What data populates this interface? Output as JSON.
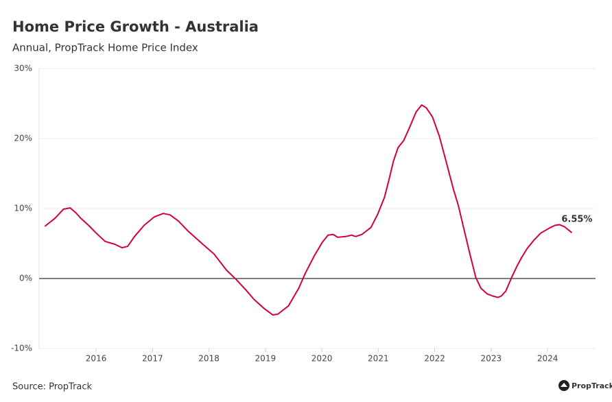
{
  "chart_data": {
    "type": "line",
    "title": "Home Price Growth - Australia",
    "subtitle": "Annual, PropTrack Home Price Index",
    "source": "Source: PropTrack",
    "logo": "PropTrack",
    "color": "#d50032",
    "x": [
      2015.09,
      2015.27,
      2015.42,
      2015.54,
      2015.64,
      2015.73,
      2015.88,
      2016.0,
      2016.16,
      2016.33,
      2016.46,
      2016.56,
      2016.68,
      2016.85,
      2017.03,
      2017.19,
      2017.31,
      2017.46,
      2017.64,
      2017.89,
      2018.09,
      2018.31,
      2018.49,
      2018.65,
      2018.8,
      2018.98,
      2019.13,
      2019.22,
      2019.41,
      2019.59,
      2019.71,
      2019.87,
      2020.01,
      2020.11,
      2020.2,
      2020.28,
      2020.42,
      2020.53,
      2020.6,
      2020.71,
      2020.87,
      2020.99,
      2021.11,
      2021.18,
      2021.27,
      2021.35,
      2021.45,
      2021.56,
      2021.67,
      2021.77,
      2021.85,
      2021.96,
      2022.08,
      2022.2,
      2022.33,
      2022.42,
      2022.52,
      2022.63,
      2022.73,
      2022.82,
      2022.93,
      2023.03,
      2023.12,
      2023.18,
      2023.26,
      2023.36,
      2023.46,
      2023.54,
      2023.64,
      2023.76,
      2023.88,
      2024.03,
      2024.13,
      2024.21,
      2024.3,
      2024.43
    ],
    "values": [
      7.45,
      8.6,
      9.9,
      10.1,
      9.4,
      8.6,
      7.5,
      6.5,
      5.3,
      4.9,
      4.4,
      4.6,
      6.0,
      7.6,
      8.8,
      9.3,
      9.1,
      8.2,
      6.7,
      4.9,
      3.5,
      1.2,
      -0.2,
      -1.6,
      -3.0,
      -4.3,
      -5.2,
      -5.1,
      -3.9,
      -1.4,
      0.8,
      3.3,
      5.2,
      6.2,
      6.3,
      5.9,
      6.0,
      6.2,
      6.0,
      6.3,
      7.3,
      9.2,
      11.6,
      13.8,
      16.8,
      18.7,
      19.7,
      21.7,
      23.8,
      24.8,
      24.4,
      23.1,
      20.4,
      16.8,
      12.8,
      10.4,
      7.0,
      3.3,
      0.1,
      -1.4,
      -2.2,
      -2.5,
      -2.7,
      -2.5,
      -1.8,
      0.1,
      1.8,
      3.0,
      4.3,
      5.5,
      6.5,
      7.2,
      7.6,
      7.7,
      7.4,
      6.55
    ],
    "value_labels": [
      null,
      null,
      null,
      null,
      null,
      null,
      null,
      null,
      null,
      null,
      null,
      null,
      null,
      null,
      null,
      null,
      null,
      null,
      null,
      null,
      null,
      null,
      null,
      null,
      null,
      null,
      null,
      null,
      null,
      null,
      null,
      null,
      null,
      null,
      null,
      null,
      null,
      null,
      null,
      null,
      null,
      null,
      null,
      null,
      null,
      null,
      null,
      null,
      null,
      null,
      null,
      null,
      null,
      null,
      null,
      null,
      null,
      null,
      null,
      null,
      null,
      null,
      null,
      null,
      null,
      null,
      null,
      null,
      null,
      null,
      null,
      null,
      null,
      null,
      null,
      "6.55%"
    ],
    "xlim": [
      2014.99,
      2024.85
    ],
    "xticks": [
      2016,
      2017,
      2018,
      2019,
      2020,
      2021,
      2022,
      2023,
      2024
    ],
    "ylim": [
      -10,
      30
    ],
    "yticks": [
      {
        "value": -10,
        "label": "-10%"
      },
      {
        "value": 0,
        "label": "0%"
      },
      {
        "value": 10,
        "label": "10%"
      },
      {
        "value": 20,
        "label": "20%"
      },
      {
        "value": 30,
        "label": "30%"
      }
    ],
    "grid": true
  }
}
